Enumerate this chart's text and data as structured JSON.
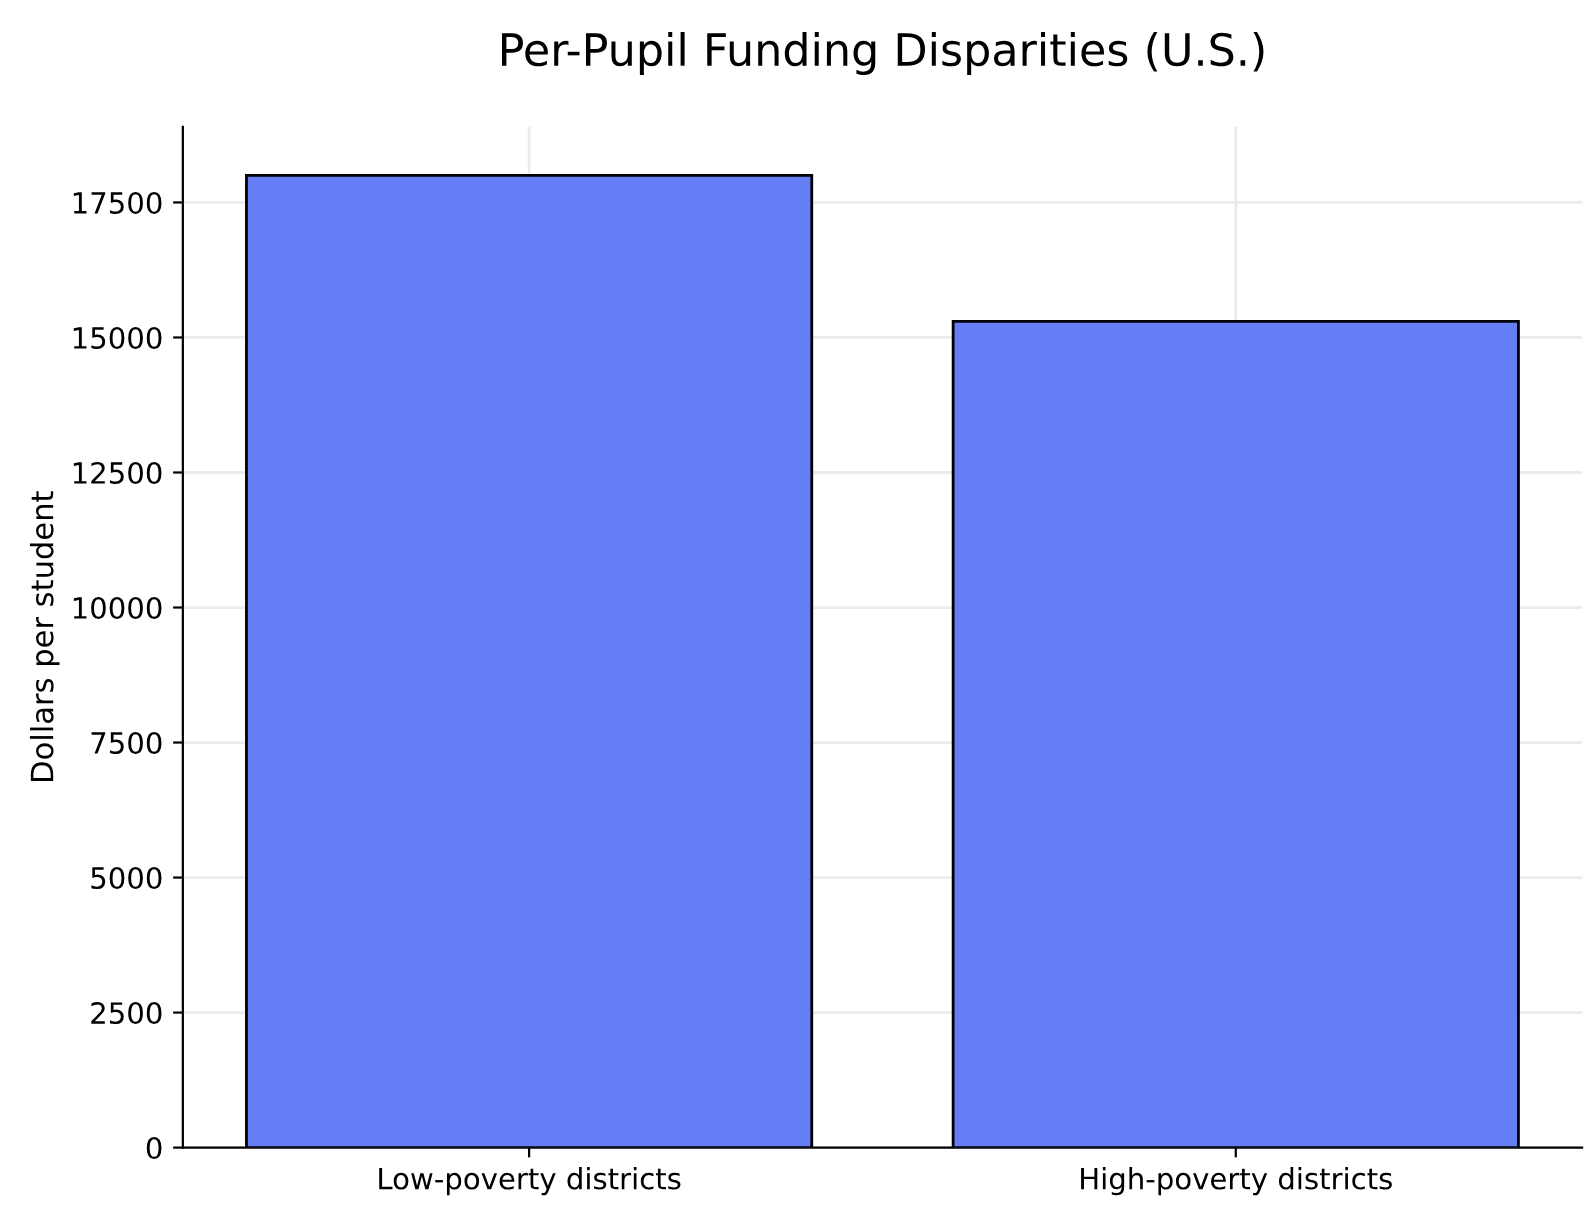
{
  "chart_data": {
    "type": "bar",
    "title": "Per-Pupil Funding Disparities (U.S.)",
    "ylabel": "Dollars per student",
    "categories": [
      "Low-poverty districts",
      "High-poverty districts"
    ],
    "values": [
      18000,
      15300
    ],
    "color": "#657ef5",
    "ylim": [
      0,
      18900
    ],
    "yticks": [
      0,
      2500,
      5000,
      7500,
      10000,
      12500,
      15000,
      17500
    ],
    "grid": true
  }
}
